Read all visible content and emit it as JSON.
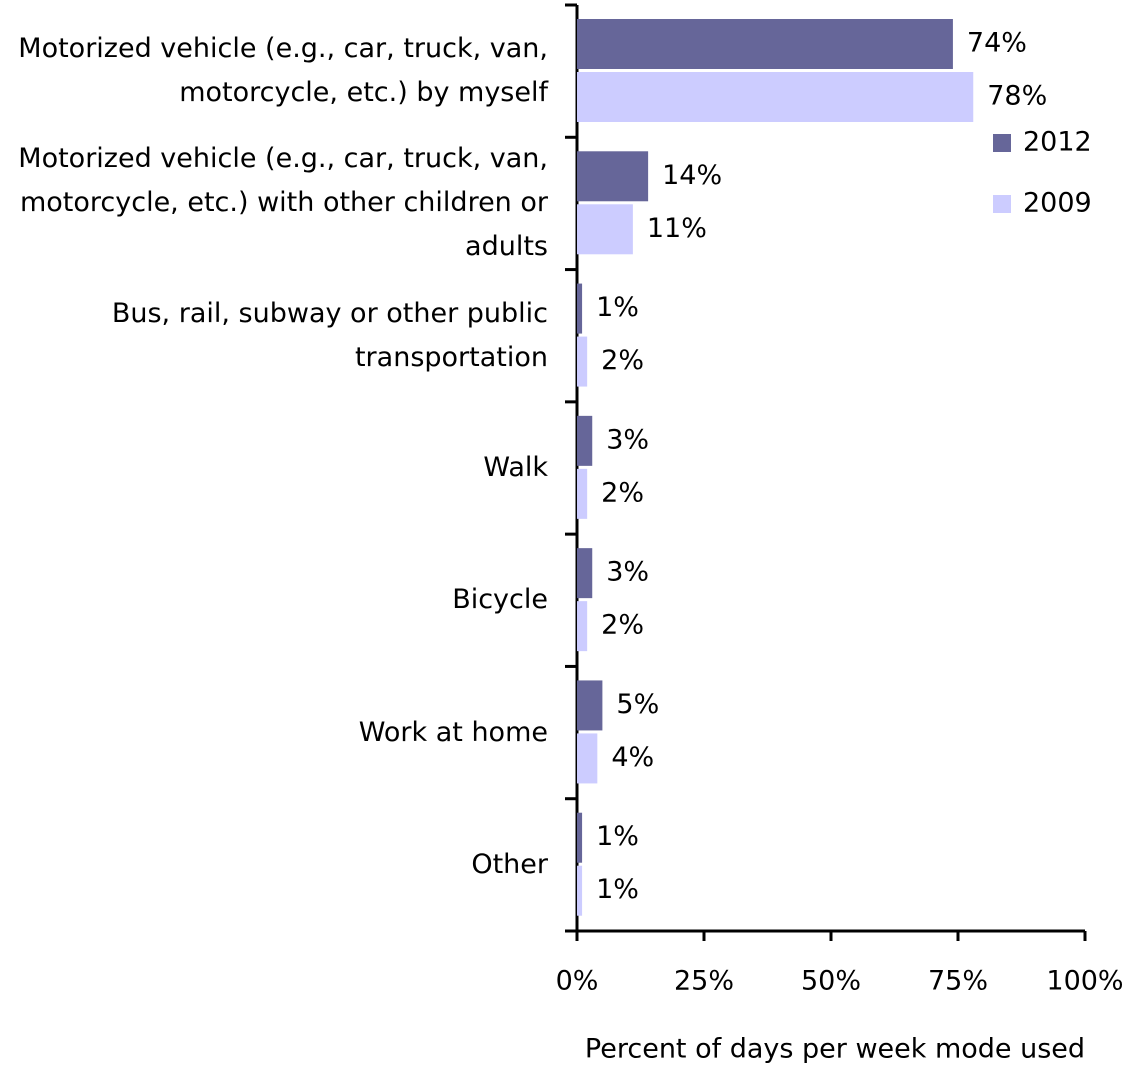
{
  "chart_data": {
    "type": "hbar",
    "categories": [
      "Motorized vehicle (e.g., car, truck, van, motorcycle, etc.) by myself",
      "Motorized vehicle (e.g., car, truck, van, motorcycle, etc.) with other children or adults",
      "Bus, rail, subway or other public transportation",
      "Walk",
      "Bicycle",
      "Work at home",
      "Other"
    ],
    "series": [
      {
        "name": "2012",
        "color": "#666699",
        "values": [
          74,
          14,
          1,
          3,
          3,
          5,
          1
        ],
        "value_labels": [
          "74%",
          "14%",
          "1%",
          "3%",
          "3%",
          "5%",
          "1%"
        ]
      },
      {
        "name": "2009",
        "color": "#ccccff",
        "values": [
          78,
          11,
          2,
          2,
          2,
          4,
          1
        ],
        "value_labels": [
          "78%",
          "11%",
          "2%",
          "2%",
          "2%",
          "4%",
          "1%"
        ]
      }
    ],
    "xlim": [
      0,
      100
    ],
    "xticks": [
      {
        "value": 0,
        "label": "0%"
      },
      {
        "value": 25,
        "label": "25%"
      },
      {
        "value": 50,
        "label": "50%"
      },
      {
        "value": 75,
        "label": "75%"
      },
      {
        "value": 100,
        "label": "100%"
      }
    ],
    "xlabel": "Percent of days per week mode used",
    "legend": "upper right"
  }
}
